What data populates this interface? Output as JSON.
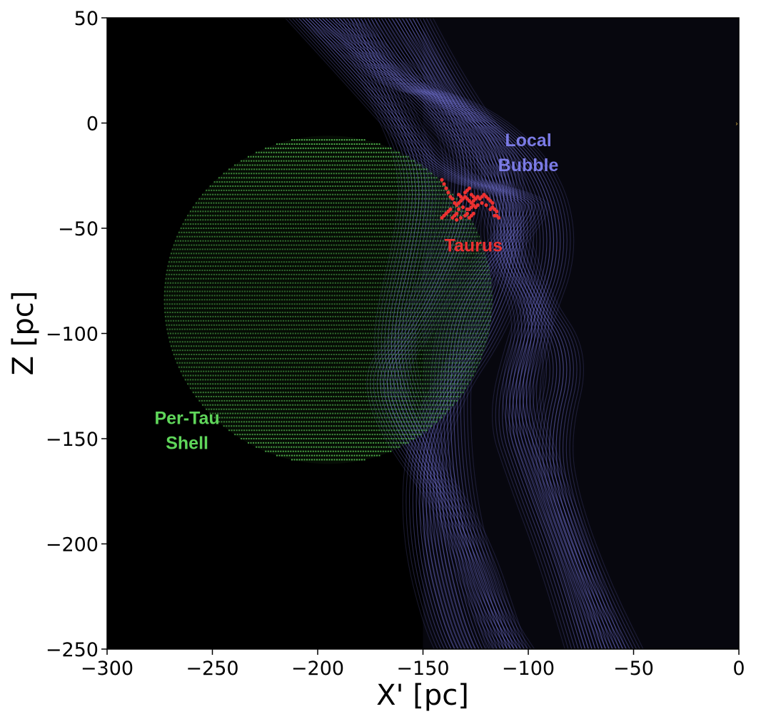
{
  "chart_data": {
    "type": "scatter",
    "xlabel": "X' [pc]",
    "ylabel": "Z [pc]",
    "xlim": [
      -300,
      0
    ],
    "ylim": [
      -250,
      50
    ],
    "x_ticks": [
      -300,
      -250,
      -200,
      -150,
      -100,
      -50,
      0
    ],
    "y_ticks": [
      50,
      0,
      -50,
      -100,
      -150,
      -200,
      -250
    ],
    "x_tick_labels": [
      "−300",
      "−250",
      "−200",
      "−150",
      "−100",
      "−50",
      "0"
    ],
    "y_tick_labels": [
      "50",
      "0",
      "−50",
      "−100",
      "−150",
      "−200",
      "−250"
    ],
    "background": "#000000",
    "grid": false,
    "per_tau_shell": {
      "label_lines": [
        "Per-Tau",
        "Shell"
      ],
      "color": "#5fd65a",
      "center": [
        -195,
        -84
      ],
      "radius": 78,
      "label_pos": [
        -262,
        -143
      ]
    },
    "local_bubble": {
      "label_lines": [
        "Local",
        "Bubble"
      ],
      "color": "#7b7be6",
      "label_pos": [
        -100,
        -11
      ],
      "surface_curves": [
        [
          [
            -215,
            60
          ],
          [
            -160,
            0
          ],
          [
            -140,
            -25
          ],
          [
            -100,
            -35
          ],
          [
            -100,
            -45
          ],
          [
            -130,
            -80
          ],
          [
            -138,
            -120
          ],
          [
            -135,
            -180
          ],
          [
            -120,
            -230
          ],
          [
            -100,
            -260
          ]
        ],
        [
          [
            -185,
            55
          ],
          [
            -165,
            10
          ],
          [
            -150,
            -25
          ],
          [
            -155,
            -60
          ],
          [
            -165,
            -100
          ],
          [
            -160,
            -130
          ],
          [
            -145,
            -160
          ],
          [
            -140,
            -200
          ],
          [
            -130,
            -240
          ],
          [
            -120,
            -260
          ]
        ],
        [
          [
            -180,
            60
          ],
          [
            -160,
            20
          ],
          [
            -120,
            0
          ],
          [
            -110,
            -30
          ],
          [
            -115,
            -60
          ],
          [
            -95,
            -90
          ],
          [
            -105,
            -130
          ],
          [
            -95,
            -160
          ],
          [
            -80,
            -200
          ],
          [
            -60,
            -260
          ]
        ],
        [
          [
            -200,
            60
          ],
          [
            -150,
            10
          ],
          [
            -120,
            -20
          ],
          [
            -110,
            -50
          ],
          [
            -100,
            -80
          ],
          [
            -80,
            -110
          ],
          [
            -90,
            -150
          ],
          [
            -85,
            -180
          ],
          [
            -70,
            -220
          ],
          [
            -50,
            -260
          ]
        ],
        [
          [
            -170,
            60
          ],
          [
            -150,
            30
          ],
          [
            -130,
            -10
          ],
          [
            -130,
            -40
          ],
          [
            -140,
            -70
          ],
          [
            -155,
            -100
          ],
          [
            -170,
            -120
          ],
          [
            -160,
            -150
          ],
          [
            -130,
            -190
          ],
          [
            -110,
            -250
          ]
        ],
        [
          [
            -160,
            60
          ],
          [
            -140,
            20
          ],
          [
            -110,
            -20
          ],
          [
            -105,
            -60
          ],
          [
            -120,
            -100
          ],
          [
            -140,
            -130
          ],
          [
            -150,
            -160
          ],
          [
            -150,
            -200
          ],
          [
            -140,
            -240
          ],
          [
            -130,
            -260
          ]
        ],
        [
          [
            -210,
            60
          ],
          [
            -170,
            20
          ],
          [
            -130,
            10
          ],
          [
            -95,
            -20
          ],
          [
            -85,
            -60
          ],
          [
            -100,
            -100
          ],
          [
            -110,
            -140
          ],
          [
            -100,
            -170
          ],
          [
            -85,
            -210
          ],
          [
            -70,
            -260
          ]
        ]
      ]
    },
    "taurus": {
      "label": "Taurus",
      "color": "#ec3131",
      "label_pos": [
        -126,
        -61
      ],
      "points": [
        [
          -141,
          -27
        ],
        [
          -140,
          -29
        ],
        [
          -139,
          -31
        ],
        [
          -138,
          -33
        ],
        [
          -137,
          -35
        ],
        [
          -136,
          -36
        ],
        [
          -135,
          -38
        ],
        [
          -134,
          -39
        ],
        [
          -133,
          -38
        ],
        [
          -132,
          -37
        ],
        [
          -131,
          -36
        ],
        [
          -130,
          -35
        ],
        [
          -129,
          -36
        ],
        [
          -128,
          -37
        ],
        [
          -127,
          -38
        ],
        [
          -126,
          -37
        ],
        [
          -125,
          -36
        ],
        [
          -124,
          -35
        ],
        [
          -123,
          -36
        ],
        [
          -122,
          -35
        ],
        [
          -121,
          -34
        ],
        [
          -120,
          -35
        ],
        [
          -119,
          -36
        ],
        [
          -118,
          -37
        ],
        [
          -117,
          -38
        ],
        [
          -117,
          -40
        ],
        [
          -116,
          -41
        ],
        [
          -115,
          -42
        ],
        [
          -115,
          -44
        ],
        [
          -114,
          -45
        ],
        [
          -116,
          -44
        ],
        [
          -118,
          -41
        ],
        [
          -120,
          -39
        ],
        [
          -122,
          -38
        ],
        [
          -124,
          -39
        ],
        [
          -125,
          -40
        ],
        [
          -126,
          -39
        ],
        [
          -127,
          -40
        ],
        [
          -128,
          -41
        ],
        [
          -129,
          -41
        ],
        [
          -131,
          -40
        ],
        [
          -133,
          -41
        ],
        [
          -134,
          -43
        ],
        [
          -135,
          -44
        ],
        [
          -136,
          -45
        ],
        [
          -134,
          -46
        ],
        [
          -132,
          -45
        ],
        [
          -130,
          -44
        ],
        [
          -129,
          -43
        ],
        [
          -128,
          -45
        ],
        [
          -127,
          -44
        ],
        [
          -126,
          -43
        ],
        [
          -130,
          -33
        ],
        [
          -129,
          -32
        ],
        [
          -128,
          -31
        ],
        [
          -127,
          -34
        ],
        [
          -126,
          -35
        ],
        [
          -133,
          -34
        ],
        [
          -132,
          -35
        ],
        [
          -137,
          -41
        ],
        [
          -138,
          -42
        ],
        [
          -139,
          -43
        ],
        [
          -140,
          -44
        ],
        [
          -141,
          -45
        ]
      ]
    },
    "marker_color": "#c8a03c"
  }
}
